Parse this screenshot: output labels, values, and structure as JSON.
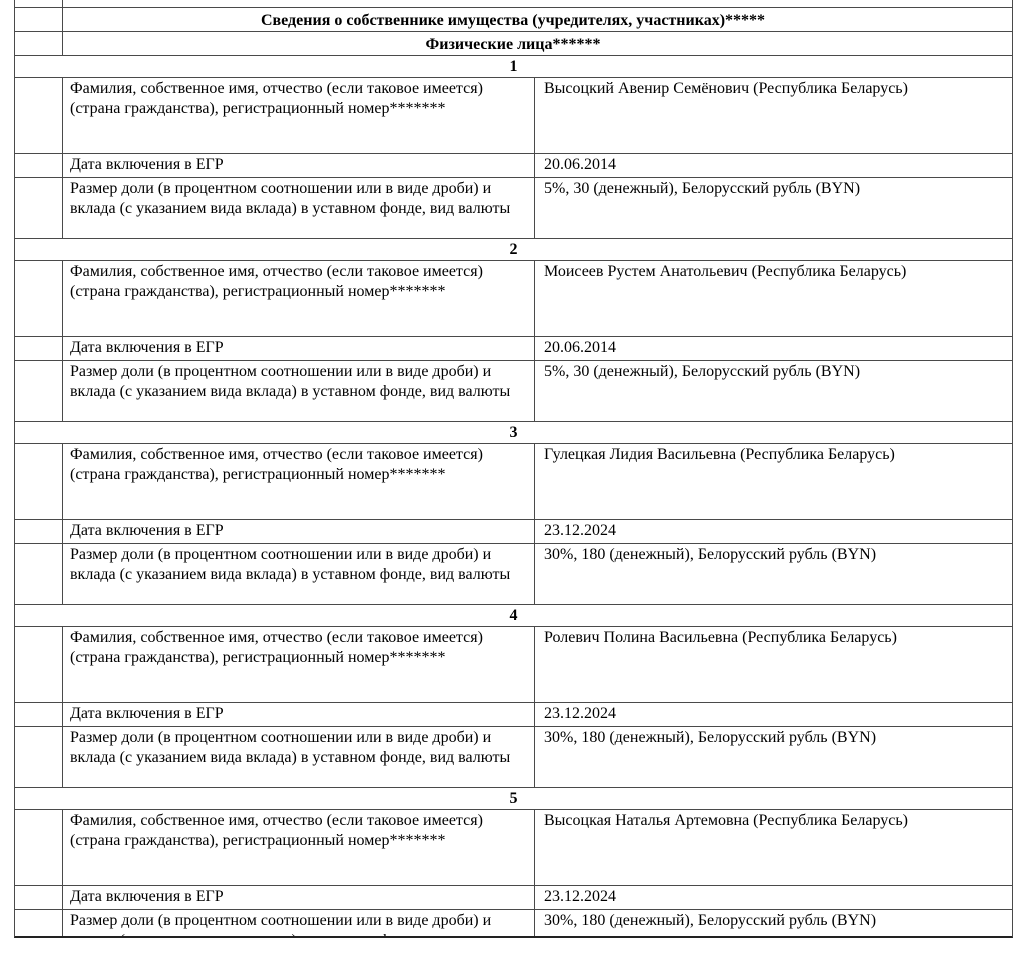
{
  "document": {
    "section_title": "Сведения о собственнике имущества (учредителях, участниках)*****",
    "subsection_title": "Физические лица******",
    "field_labels": {
      "name": "Фамилия, собственное имя, отчество (если таковое имеется) (страна гражданства), регистрационный номер*******",
      "date": "Дата включения в ЕГР",
      "share": "Размер доли (в процентном соотношении или в виде дроби) и вклада (с указанием вида вклада) в уставном фонде, вид валюты"
    },
    "persons": [
      {
        "number": "1",
        "name": "Высоцкий Авенир Семёнович (Республика Беларусь)",
        "date": "20.06.2014",
        "share": "5%, 30 (денежный), Белорусский рубль (BYN)"
      },
      {
        "number": "2",
        "name": "Моисеев Рустем Анатольевич (Республика Беларусь)",
        "date": "20.06.2014",
        "share": "5%, 30 (денежный), Белорусский рубль (BYN)"
      },
      {
        "number": "3",
        "name": "Гулецкая Лидия Васильевна (Республика Беларусь)",
        "date": "23.12.2024",
        "share": "30%, 180 (денежный), Белорусский рубль (BYN)"
      },
      {
        "number": "4",
        "name": "Ролевич Полина Васильевна (Республика Беларусь)",
        "date": "23.12.2024",
        "share": "30%, 180 (денежный), Белорусский рубль (BYN)"
      },
      {
        "number": "5",
        "name": "Высоцкая Наталья Артемовна (Республика Беларусь)",
        "date": "23.12.2024",
        "share": "30%, 180 (денежный), Белорусский рубль (BYN)"
      }
    ],
    "colors": {
      "border": "#4a4a4a",
      "background": "#ffffff",
      "text": "#000000"
    }
  }
}
